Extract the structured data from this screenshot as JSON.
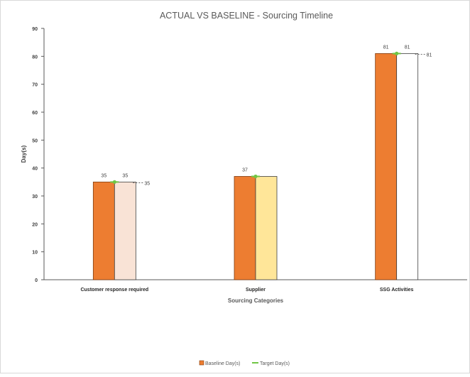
{
  "chart_data": {
    "type": "bar",
    "title": "ACTUAL VS BASELINE - Sourcing Timeline",
    "xlabel": "Sourcing Categories",
    "ylabel": "Day(s)",
    "ylim": [
      0,
      90
    ],
    "yticks": [
      "0",
      "10",
      "20",
      "30",
      "40",
      "50",
      "60",
      "70",
      "80",
      "90"
    ],
    "categories": [
      "Customer response required",
      "Supplier",
      "SSG Activities"
    ],
    "series": [
      {
        "name": "Baseline Day(s)",
        "type": "bar",
        "values": [
          35,
          37,
          81
        ],
        "color": "#ED7D31",
        "labels": [
          "35",
          "37",
          "81"
        ]
      },
      {
        "name": "",
        "type": "bar",
        "values": [
          35,
          37,
          81
        ],
        "colors": [
          "#F9E3D6",
          "#FFE699",
          "#FFFFFF"
        ],
        "labels": [
          "35",
          "",
          "81"
        ],
        "side_labels": [
          "35",
          "",
          "81"
        ]
      },
      {
        "name": "Target Day(s)",
        "type": "line",
        "values": [
          35,
          37,
          81
        ],
        "color": "#70C645"
      }
    ],
    "grid": false,
    "legend": "bottom-center"
  }
}
